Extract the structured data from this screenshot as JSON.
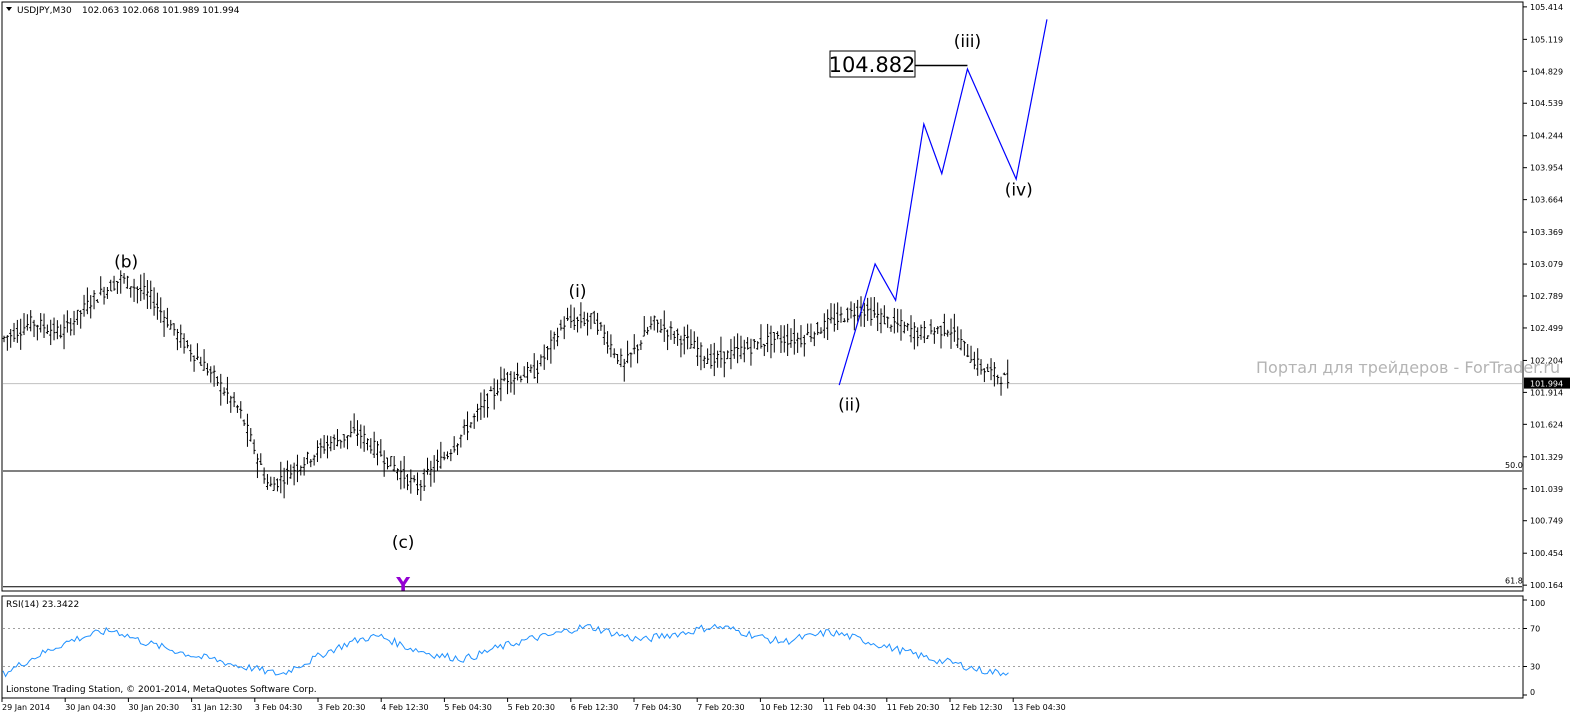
{
  "header": {
    "symbol": "USDJPY,M30",
    "ohlc": "102.063 102.068 101.989 101.994"
  },
  "copyright": "Lionstone Trading Station, © 2001-2014, MetaQuotes Software Corp.",
  "watermark": "Портал для трейдеров - ForTrader.ru",
  "colors": {
    "background": "#ffffff",
    "candles": "#000000",
    "projection": "#0000ff",
    "rsi_line": "#1e90ff",
    "price_line": "#c0c0c0",
    "marker": "#9400d3",
    "watermark": "#b4b4b4"
  },
  "chart_data": {
    "type": "line",
    "main": {
      "title": "USDJPY,M30",
      "yticks": [
        "105.414",
        "105.119",
        "104.829",
        "104.539",
        "104.244",
        "103.954",
        "103.664",
        "103.369",
        "103.079",
        "102.789",
        "102.499",
        "102.204",
        "101.914",
        "101.624",
        "101.329",
        "101.039",
        "100.749",
        "100.454",
        "100.164"
      ],
      "ylim": [
        100.12,
        105.44
      ],
      "current_price": "101.994",
      "xticks": [
        "29 Jan 2014",
        "30 Jan 04:30",
        "30 Jan 20:30",
        "31 Jan 12:30",
        "3 Feb 04:30",
        "3 Feb 20:30",
        "4 Feb 12:30",
        "5 Feb 04:30",
        "5 Feb 20:30",
        "6 Feb 12:30",
        "7 Feb 04:30",
        "7 Feb 20:30",
        "10 Feb 12:30",
        "11 Feb 04:30",
        "11 Feb 20:30",
        "12 Feb 12:30",
        "13 Feb 04:30"
      ],
      "price_path": [
        [
          0,
          102.4
        ],
        [
          1,
          102.55
        ],
        [
          2,
          102.45
        ],
        [
          3,
          102.75
        ],
        [
          4,
          102.95
        ],
        [
          5,
          102.78
        ],
        [
          6,
          102.4
        ],
        [
          7,
          102.1
        ],
        [
          8,
          101.75
        ],
        [
          9,
          101.05
        ],
        [
          10,
          101.25
        ],
        [
          11,
          101.45
        ],
        [
          12,
          101.55
        ],
        [
          13,
          101.3
        ],
        [
          14,
          101.05
        ],
        [
          15,
          101.35
        ],
        [
          16,
          101.7
        ],
        [
          17,
          102.05
        ],
        [
          18,
          102.1
        ],
        [
          19,
          102.55
        ],
        [
          20,
          102.58
        ],
        [
          21,
          102.15
        ],
        [
          22,
          102.55
        ],
        [
          23,
          102.4
        ],
        [
          24,
          102.2
        ],
        [
          25,
          102.3
        ],
        [
          26,
          102.4
        ],
        [
          27,
          102.4
        ],
        [
          28,
          102.55
        ],
        [
          29,
          102.68
        ],
        [
          30,
          102.55
        ],
        [
          31,
          102.45
        ],
        [
          32,
          102.5
        ],
        [
          33,
          102.15
        ],
        [
          34,
          102.02
        ]
      ],
      "wave_labels": [
        {
          "text": "(b)",
          "x": 2.4,
          "y": 103.05
        },
        {
          "text": "(c)",
          "x": 7.8,
          "y": 100.5
        },
        {
          "text": "(i)",
          "x": 11.2,
          "y": 102.78
        },
        {
          "text": "(ii)",
          "x": 16.5,
          "y": 101.75
        },
        {
          "text": "(iii)",
          "x": 18.8,
          "y": 105.05
        },
        {
          "text": "(iv)",
          "x": 19.8,
          "y": 103.7
        }
      ],
      "target_label": "104.882",
      "target_value": 104.882,
      "fib_levels": [
        {
          "label": "50.0",
          "value": 101.2
        },
        {
          "label": "61.8",
          "value": 100.15
        }
      ],
      "marker": {
        "text": "Y",
        "x": 7.8,
        "y": 100.17
      },
      "projection": {
        "name": "",
        "points": [
          [
            16.3,
            101.98
          ],
          [
            17.0,
            103.08
          ],
          [
            17.4,
            102.75
          ],
          [
            17.95,
            104.35
          ],
          [
            18.3,
            103.9
          ],
          [
            18.8,
            104.85
          ],
          [
            19.75,
            103.85
          ],
          [
            20.35,
            105.3
          ]
        ]
      }
    },
    "rsi": {
      "label": "RSI(14) 23.3422",
      "yticks": [
        "100",
        "70",
        "30",
        "0"
      ],
      "ylim": [
        0,
        100
      ],
      "levels": [
        70,
        30
      ],
      "values": [
        22,
        30,
        38,
        45,
        52,
        58,
        62,
        66,
        68,
        62,
        56,
        52,
        48,
        44,
        40,
        38,
        34,
        30,
        28,
        24,
        22,
        30,
        36,
        44,
        50,
        56,
        60,
        62,
        56,
        50,
        46,
        42,
        40,
        38,
        42,
        48,
        52,
        56,
        60,
        62,
        66,
        70,
        72,
        68,
        64,
        60,
        58,
        62,
        64,
        66,
        70,
        72,
        70,
        66,
        62,
        58,
        56,
        60,
        62,
        66,
        64,
        60,
        56,
        52,
        48,
        44,
        40,
        36,
        34,
        30,
        26,
        24,
        23.34
      ]
    }
  }
}
